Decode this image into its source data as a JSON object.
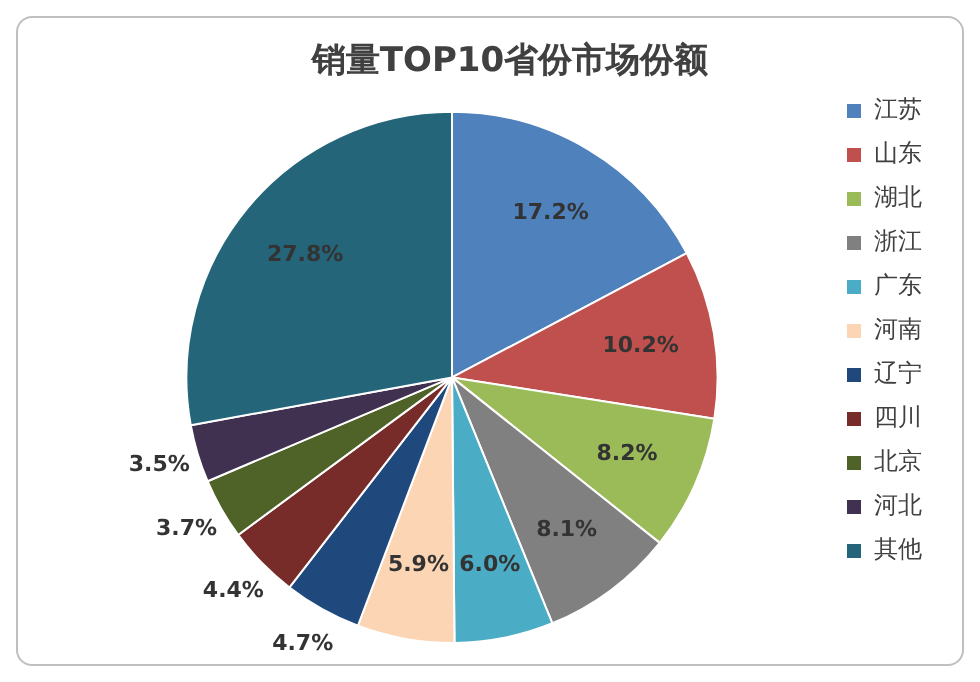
{
  "chart_data": {
    "type": "pie",
    "title": "销量TOP10省份市场份额",
    "categories": [
      "江苏",
      "山东",
      "湖北",
      "浙江",
      "广东",
      "河南",
      "辽宁",
      "四川",
      "北京",
      "河北",
      "其他"
    ],
    "values": [
      17.2,
      10.2,
      8.2,
      8.1,
      6.0,
      5.9,
      4.7,
      4.4,
      3.7,
      3.5,
      27.8
    ],
    "value_labels": [
      "17.2%",
      "10.2%",
      "8.2%",
      "8.1%",
      "6.0%",
      "5.9%",
      "4.7%",
      "4.4%",
      "3.7%",
      "3.5%",
      "27.8%"
    ],
    "colors": [
      "#4f81bd",
      "#c0504d",
      "#9bbb59",
      "#808080",
      "#4bacc6",
      "#fcd5b5",
      "#1f497d",
      "#772c2a",
      "#4f6228",
      "#403151",
      "#25657a"
    ],
    "legend": "right"
  }
}
